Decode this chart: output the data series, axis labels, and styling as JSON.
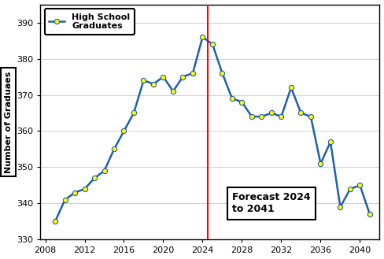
{
  "years": [
    2009,
    2010,
    2011,
    2012,
    2013,
    2014,
    2015,
    2016,
    2017,
    2018,
    2019,
    2020,
    2021,
    2022,
    2023,
    2024,
    2025,
    2026,
    2027,
    2028,
    2029,
    2030,
    2031,
    2032,
    2033,
    2034,
    2035,
    2036,
    2037,
    2038,
    2039,
    2040,
    2041
  ],
  "values": [
    335,
    341,
    343,
    344,
    347,
    349,
    355,
    360,
    365,
    374,
    373,
    375,
    371,
    375,
    376,
    386,
    384,
    376,
    369,
    368,
    364,
    364,
    365,
    364,
    372,
    365,
    364,
    351,
    357,
    339,
    344,
    345,
    337
  ],
  "line_color": "#2060a8",
  "marker_color": "#ffff00",
  "marker_edge_color": "#2060a8",
  "vline_x": 2024.5,
  "vline_color": "red",
  "ylabel": "Number of Graduaes",
  "ylim": [
    330,
    395
  ],
  "xlim": [
    2007.5,
    2042
  ],
  "yticks": [
    330,
    340,
    350,
    360,
    370,
    380,
    390
  ],
  "xticks": [
    2008,
    2012,
    2016,
    2020,
    2024,
    2028,
    2032,
    2036,
    2040
  ],
  "legend_label": "High School\nGraduates",
  "forecast_label": "Forecast 2024\nto 2041",
  "bg_color": "#ffffff",
  "grid_color": "#d0d0d0",
  "axis_fontsize": 8,
  "tick_fontsize": 8,
  "legend_fontsize": 8,
  "forecast_fontsize": 9
}
